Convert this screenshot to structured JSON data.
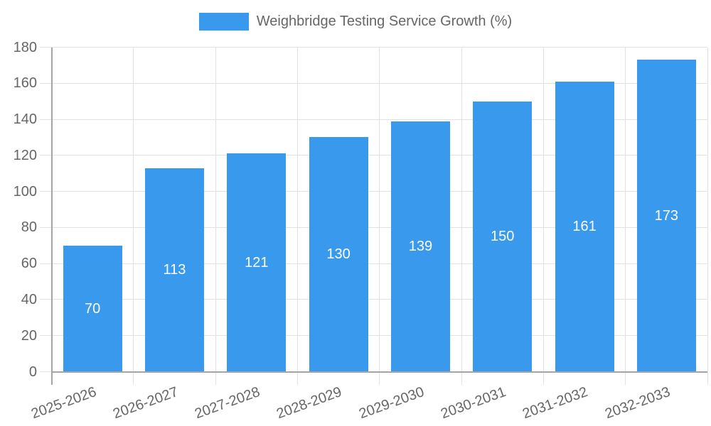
{
  "legend": {
    "label": "Weighbridge Testing Service Growth (%)"
  },
  "chart_data": {
    "type": "bar",
    "title": "",
    "xlabel": "",
    "ylabel": "",
    "categories": [
      "2025-2026",
      "2026-2027",
      "2027-2028",
      "2028-2029",
      "2029-2030",
      "2030-2031",
      "2031-2032",
      "2032-2033"
    ],
    "series": [
      {
        "name": "Weighbridge Testing Service Growth (%)",
        "values": [
          70,
          113,
          121,
          130,
          139,
          150,
          161,
          173
        ]
      }
    ],
    "ylim": [
      0,
      180
    ],
    "ytick_step": 20,
    "yticks": [
      0,
      20,
      40,
      60,
      80,
      100,
      120,
      140,
      160,
      180
    ],
    "grid": true,
    "legend_position": "top",
    "colors": {
      "bar": "#3999EC",
      "value_label": "#FFFFFF",
      "grid_line": "#E2E2E2",
      "axis_line": "#A5A5A5",
      "tick_label": "#666666",
      "legend_text": "#666666",
      "background": "#FFFFFF"
    }
  }
}
